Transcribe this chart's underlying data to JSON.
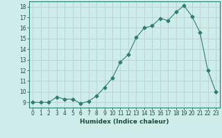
{
  "x": [
    0,
    1,
    2,
    3,
    4,
    5,
    6,
    7,
    8,
    9,
    10,
    11,
    12,
    13,
    14,
    15,
    16,
    17,
    18,
    19,
    20,
    21,
    22,
    23
  ],
  "y": [
    9,
    9,
    9,
    9.5,
    9.3,
    9.3,
    8.9,
    9.1,
    9.6,
    10.4,
    11.3,
    12.8,
    13.5,
    15.1,
    16.0,
    16.2,
    16.9,
    16.7,
    17.5,
    18.1,
    17.1,
    15.6,
    12.0,
    10.0
  ],
  "line_color": "#2e7d6e",
  "marker": "D",
  "marker_size": 2.5,
  "bg_color": "#ceecea",
  "grid_color": "#b8cac9",
  "xlabel": "Humidex (Indice chaleur)",
  "xlim": [
    -0.5,
    23.5
  ],
  "ylim": [
    8.5,
    18.5
  ],
  "yticks": [
    9,
    10,
    11,
    12,
    13,
    14,
    15,
    16,
    17,
    18
  ],
  "xticks": [
    0,
    1,
    2,
    3,
    4,
    5,
    6,
    7,
    8,
    9,
    10,
    11,
    12,
    13,
    14,
    15,
    16,
    17,
    18,
    19,
    20,
    21,
    22,
    23
  ]
}
